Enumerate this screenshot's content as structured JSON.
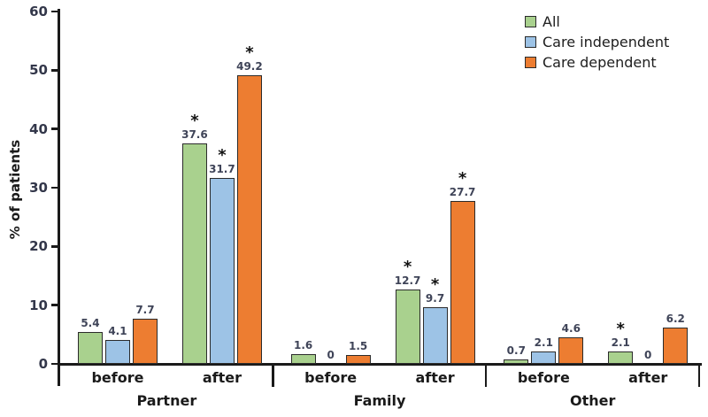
{
  "chart_data": {
    "type": "bar",
    "title": "",
    "ylabel": "% of patients",
    "ylim": [
      0,
      60
    ],
    "yticks": [
      0,
      10,
      20,
      30,
      40,
      50,
      60
    ],
    "grid": false,
    "groups": [
      "Partner",
      "Family",
      "Other"
    ],
    "conditions": [
      "before",
      "after"
    ],
    "series": [
      {
        "name": "All",
        "fill": "#A9D18E"
      },
      {
        "name": "Care independent",
        "fill": "#9DC3E6"
      },
      {
        "name": "Care dependent",
        "fill": "#ED7D31"
      }
    ],
    "bar_border_color": "#2B2B2B",
    "significance_symbol": "*",
    "clusters": [
      {
        "group": "Partner",
        "condition": "before",
        "values": [
          5.4,
          4.1,
          7.7
        ],
        "significant": [
          false,
          false,
          false
        ]
      },
      {
        "group": "Partner",
        "condition": "after",
        "values": [
          37.6,
          31.7,
          49.2
        ],
        "significant": [
          true,
          true,
          true
        ]
      },
      {
        "group": "Family",
        "condition": "before",
        "values": [
          1.6,
          0,
          1.5
        ],
        "significant": [
          false,
          false,
          false
        ]
      },
      {
        "group": "Family",
        "condition": "after",
        "values": [
          12.7,
          9.7,
          27.7
        ],
        "significant": [
          true,
          true,
          true
        ]
      },
      {
        "group": "Other",
        "condition": "before",
        "values": [
          0.7,
          2.1,
          4.6
        ],
        "significant": [
          false,
          false,
          false
        ]
      },
      {
        "group": "Other",
        "condition": "after",
        "values": [
          2.1,
          0,
          6.2
        ],
        "significant": [
          true,
          false,
          false
        ]
      }
    ],
    "legend": {
      "position": "top-right",
      "items": [
        "All",
        "Care independent",
        "Care dependent"
      ]
    }
  }
}
